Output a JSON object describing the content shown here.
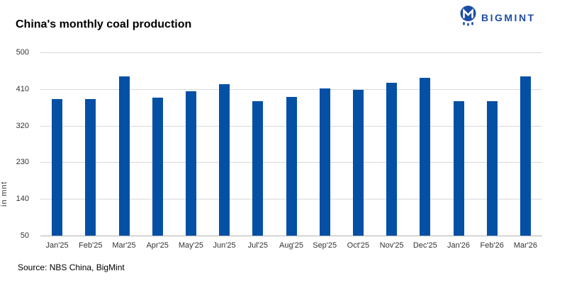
{
  "header": {
    "title": "China's monthly coal production",
    "logo_text": "BIGMINT"
  },
  "chart_data": {
    "type": "bar",
    "title": "China's monthly coal production",
    "xlabel": "",
    "ylabel": "in mnt",
    "ylim": [
      50,
      500
    ],
    "yticks": [
      50,
      140,
      230,
      320,
      410,
      500
    ],
    "grid": "horizontal",
    "legend": "none",
    "categories": [
      "Jan'25",
      "Feb'25",
      "Mar'25",
      "Apr'25",
      "May'25",
      "Jun'25",
      "Jul'25",
      "Aug'25",
      "Sep'25",
      "Oct'25",
      "Nov'25",
      "Dec'25",
      "Jan'26",
      "Feb'26",
      "Mar'26"
    ],
    "values": [
      385,
      385,
      441,
      389,
      404,
      421,
      381,
      390,
      411,
      408,
      426,
      437,
      381,
      381,
      441
    ],
    "bar_color": "#0450a5",
    "gridline_color": "#d9d9d9",
    "axis_line_color": "#b3b3b3"
  },
  "footer": {
    "source": "Source: NBS China, BigMint"
  },
  "colors": {
    "logo_blue": "#1e4ea3",
    "title_color": "#000000",
    "tick_label_color": "#333333"
  }
}
